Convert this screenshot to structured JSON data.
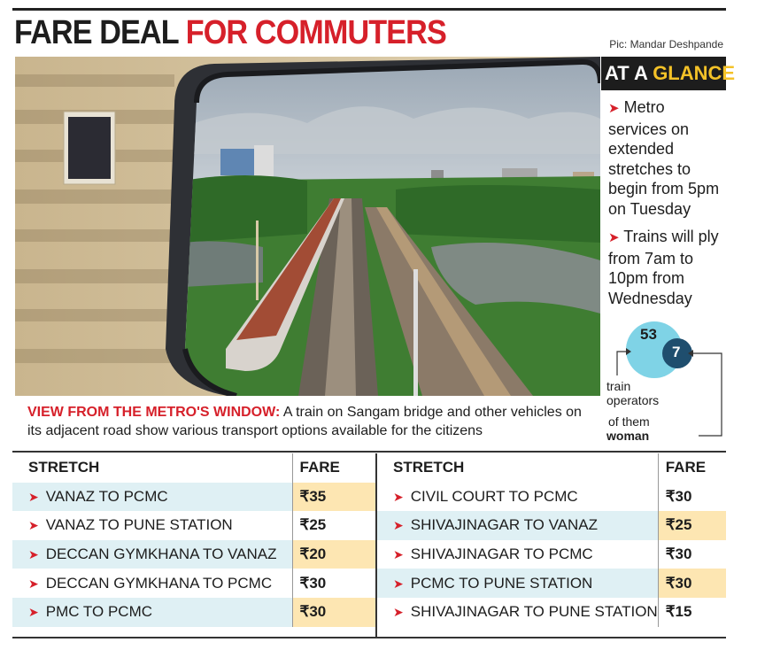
{
  "headline": {
    "part1": "FARE DEAL",
    "part2": "FOR COMMUTERS"
  },
  "credit": "Pic: Mandar Deshpande",
  "glance": {
    "title_part1": "AT A",
    "title_part2": "GLANCE",
    "points": [
      "Metro services on extended stretches to begin from 5pm on Tuesday",
      "Trains will ply from 7am to 10pm from Wednesday"
    ],
    "operators_total": "53",
    "operators_women": "7",
    "label_operators": "train operators",
    "label_women_prefix": "of them",
    "label_women": "woman"
  },
  "caption": {
    "label": "VIEW FROM THE METRO'S WINDOW:",
    "text": "A train on Sangam bridge and other vehicles on its adjacent road show various transport options available for the citizens"
  },
  "table": {
    "col_stretch": "STRETCH",
    "col_fare": "FARE",
    "left": [
      {
        "stretch": "VANAZ TO PCMC",
        "fare": "₹35"
      },
      {
        "stretch": "VANAZ TO PUNE STATION",
        "fare": "₹25"
      },
      {
        "stretch": "DECCAN GYMKHANA TO VANAZ",
        "fare": "₹20"
      },
      {
        "stretch": "DECCAN GYMKHANA TO PCMC",
        "fare": "₹30"
      },
      {
        "stretch": "PMC TO PCMC",
        "fare": "₹30"
      }
    ],
    "right": [
      {
        "stretch": "CIVIL COURT TO PCMC",
        "fare": "₹30"
      },
      {
        "stretch": "SHIVAJINAGAR TO VANAZ",
        "fare": "₹25"
      },
      {
        "stretch": "SHIVAJINAGAR TO PCMC",
        "fare": "₹30"
      },
      {
        "stretch": "PCMC TO PUNE STATION",
        "fare": "₹30"
      },
      {
        "stretch": "SHIVAJINAGAR TO PUNE STATION",
        "fare": "₹15"
      }
    ]
  },
  "colors": {
    "accent_red": "#d6202a",
    "accent_yellow": "#f4c228",
    "row_blue": "#dff0f4",
    "fare_yellow": "#fde6b2",
    "circle_blue": "#7fd3e6",
    "circle_dark": "#1f4e6e"
  }
}
